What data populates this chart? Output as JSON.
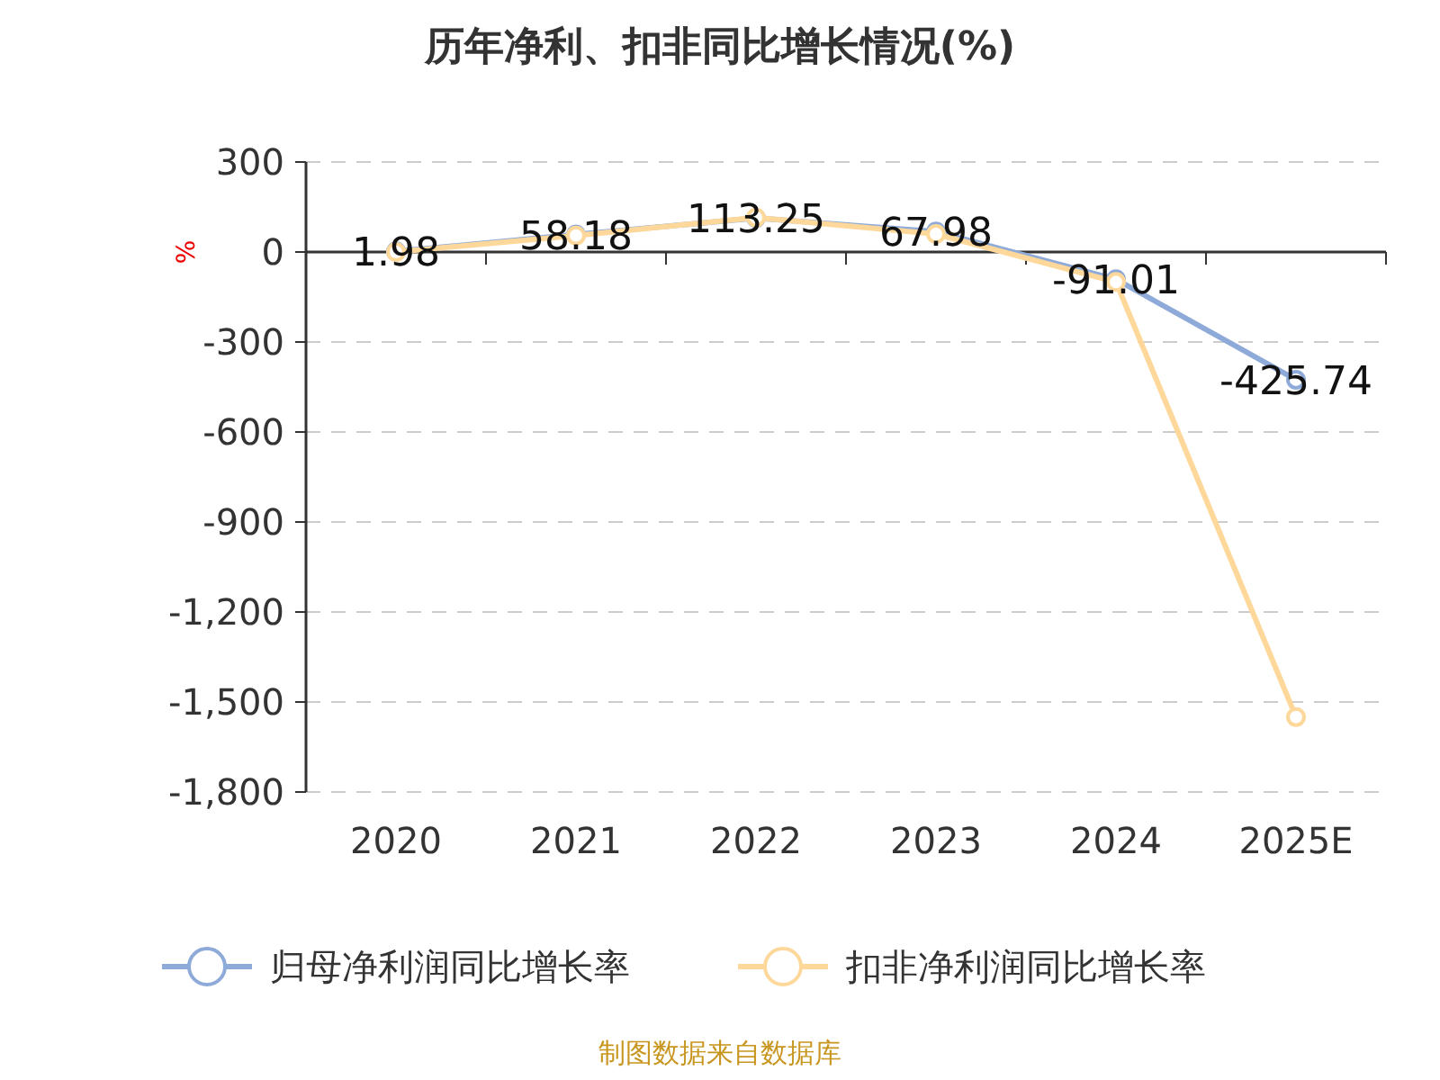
{
  "chart_data": {
    "type": "line",
    "title": "历年净利、扣非同比增长情况(%)",
    "ylabel": "%",
    "categories": [
      "2020",
      "2021",
      "2022",
      "2023",
      "2024",
      "2025E"
    ],
    "series": [
      {
        "name": "归母净利润同比增长率",
        "color": "#8eaad9",
        "values": [
          1.98,
          58.18,
          113.25,
          67.98,
          -91.01,
          -425.74
        ],
        "value_labels": [
          "1.98",
          "58.18",
          "113.25",
          "67.98",
          "-91.01",
          "-425.74"
        ]
      },
      {
        "name": "扣非净利润同比增长率",
        "color": "#fdd89a",
        "values": [
          0,
          55,
          115,
          60,
          -100,
          -1550
        ]
      }
    ],
    "ylim": [
      -1800,
      300
    ],
    "yticks": [
      300,
      0,
      -300,
      -600,
      -900,
      {
        "value": -1200,
        "label": "-1,200"
      },
      {
        "value": -1500,
        "label": "-1,500"
      },
      {
        "value": -1800,
        "label": "-1,800"
      }
    ],
    "grid": "y",
    "legend": "bottom",
    "marker": "circle",
    "line_style": "solid",
    "annotations": [
      "制图数据来自数据库"
    ]
  }
}
